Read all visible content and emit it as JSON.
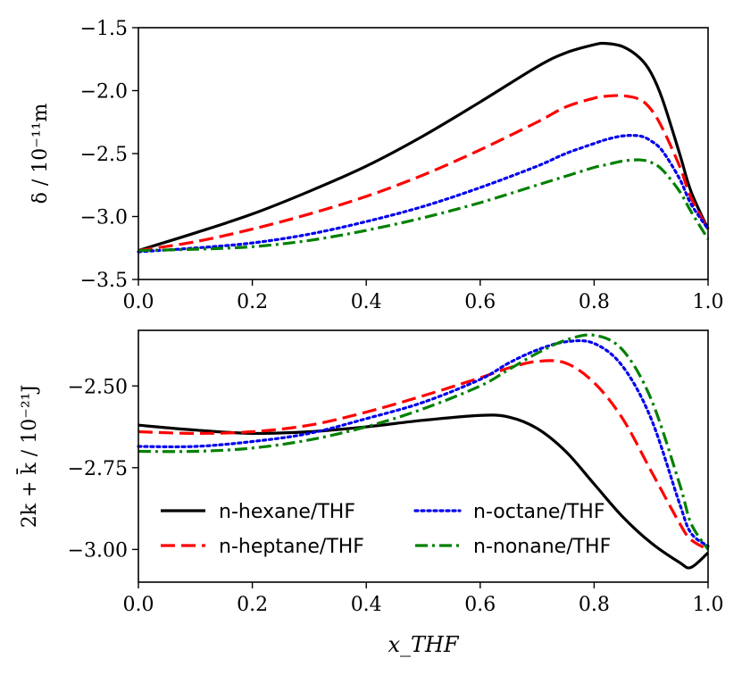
{
  "chart_data": [
    {
      "type": "line",
      "panel": "top",
      "ylabel": "δ / 10⁻¹¹m",
      "xlabel": "",
      "xlim": [
        0.0,
        1.0
      ],
      "ylim": [
        -3.5,
        -1.5
      ],
      "xticks": [
        "0.0",
        "0.2",
        "0.4",
        "0.6",
        "0.8",
        "1.0"
      ],
      "yticks": [
        "−1.5",
        "−2.0",
        "−2.5",
        "−3.0",
        "−3.5"
      ],
      "x": [
        0.0,
        0.1,
        0.2,
        0.3,
        0.4,
        0.5,
        0.6,
        0.7,
        0.75,
        0.8,
        0.82,
        0.85,
        0.88,
        0.9,
        0.92,
        0.95,
        0.97,
        1.0
      ],
      "series": [
        {
          "name": "n-hexane/THF",
          "color": "#000000",
          "style": "solid",
          "values": [
            -3.27,
            -3.13,
            -2.98,
            -2.8,
            -2.6,
            -2.36,
            -2.09,
            -1.81,
            -1.7,
            -1.635,
            -1.625,
            -1.65,
            -1.74,
            -1.86,
            -2.07,
            -2.5,
            -2.8,
            -3.1
          ]
        },
        {
          "name": "n-heptane/THF",
          "color": "#ff0000",
          "style": "dashed",
          "values": [
            -3.27,
            -3.2,
            -3.1,
            -2.98,
            -2.84,
            -2.67,
            -2.47,
            -2.25,
            -2.13,
            -2.06,
            -2.045,
            -2.04,
            -2.07,
            -2.15,
            -2.3,
            -2.6,
            -2.85,
            -3.1
          ]
        },
        {
          "name": "n-octane/THF",
          "color": "#0000ee",
          "style": "dotted",
          "values": [
            -3.28,
            -3.25,
            -3.21,
            -3.14,
            -3.04,
            -2.92,
            -2.77,
            -2.6,
            -2.5,
            -2.42,
            -2.39,
            -2.36,
            -2.36,
            -2.4,
            -2.48,
            -2.7,
            -2.9,
            -3.1
          ]
        },
        {
          "name": "n-nonane/THF",
          "color": "#008000",
          "style": "dashdot",
          "values": [
            -3.27,
            -3.26,
            -3.24,
            -3.19,
            -3.11,
            -3.01,
            -2.89,
            -2.75,
            -2.68,
            -2.61,
            -2.59,
            -2.56,
            -2.55,
            -2.57,
            -2.63,
            -2.8,
            -2.96,
            -3.18
          ]
        }
      ]
    },
    {
      "type": "line",
      "panel": "bottom",
      "ylabel": "2k + k̄ / 10⁻²¹J",
      "xlabel": "x_THF",
      "xlim": [
        0.0,
        1.0
      ],
      "ylim": [
        -3.1,
        -2.33
      ],
      "xticks": [
        "0.0",
        "0.2",
        "0.4",
        "0.6",
        "0.8",
        "1.0"
      ],
      "yticks": [
        "−2.50",
        "−2.75",
        "−3.00"
      ],
      "x": [
        0.0,
        0.1,
        0.2,
        0.3,
        0.4,
        0.5,
        0.6,
        0.65,
        0.7,
        0.75,
        0.8,
        0.85,
        0.9,
        0.95,
        0.97,
        1.0
      ],
      "series": [
        {
          "name": "n-hexane/THF",
          "color": "#000000",
          "style": "solid",
          "values": [
            -2.62,
            -2.635,
            -2.645,
            -2.64,
            -2.625,
            -2.605,
            -2.59,
            -2.595,
            -2.63,
            -2.7,
            -2.8,
            -2.9,
            -2.98,
            -3.04,
            -3.055,
            -3.01
          ]
        },
        {
          "name": "n-heptane/THF",
          "color": "#ff0000",
          "style": "dashed",
          "values": [
            -2.64,
            -2.645,
            -2.64,
            -2.62,
            -2.58,
            -2.53,
            -2.475,
            -2.445,
            -2.425,
            -2.43,
            -2.49,
            -2.6,
            -2.76,
            -2.92,
            -2.97,
            -3.0
          ]
        },
        {
          "name": "n-octane/THF",
          "color": "#0000ee",
          "style": "dotted",
          "values": [
            -2.685,
            -2.685,
            -2.67,
            -2.645,
            -2.6,
            -2.55,
            -2.48,
            -2.43,
            -2.39,
            -2.365,
            -2.37,
            -2.44,
            -2.6,
            -2.86,
            -2.95,
            -2.99
          ]
        },
        {
          "name": "n-nonane/THF",
          "color": "#008000",
          "style": "dashdot",
          "values": [
            -2.7,
            -2.7,
            -2.69,
            -2.665,
            -2.625,
            -2.57,
            -2.5,
            -2.45,
            -2.4,
            -2.36,
            -2.345,
            -2.39,
            -2.54,
            -2.8,
            -2.92,
            -3.0
          ]
        }
      ],
      "legend": {
        "placement": "lower-left",
        "columns": 2
      }
    }
  ],
  "legend_entries": [
    {
      "label": "n-hexane/THF",
      "color": "#000000",
      "style": "solid"
    },
    {
      "label": "n-octane/THF",
      "color": "#0000ee",
      "style": "dotted"
    },
    {
      "label": "n-heptane/THF",
      "color": "#ff0000",
      "style": "dashed"
    },
    {
      "label": "n-nonane/THF",
      "color": "#008000",
      "style": "dashdot"
    }
  ]
}
